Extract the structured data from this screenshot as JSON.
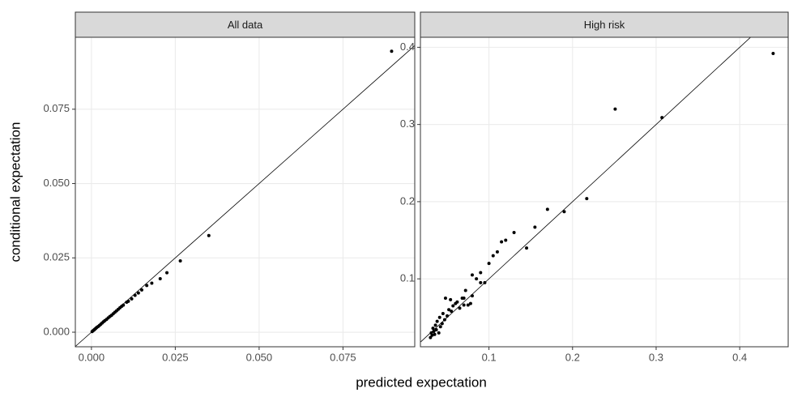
{
  "xlabel": "predicted expectation",
  "ylabel": "conditional expectation",
  "chart_data": [
    {
      "type": "scatter",
      "title": "All data",
      "color": "#000000",
      "grid": true,
      "reference_line": {
        "slope": 1,
        "intercept": 0
      },
      "xlim": [
        -0.0048,
        0.0964
      ],
      "ylim": [
        -0.0049,
        0.0992
      ],
      "xticks": [
        {
          "value": 0,
          "label": "0.000"
        },
        0.025,
        {
          "value": 0.05,
          "label": "0.050"
        },
        0.075
      ],
      "yticks": [
        {
          "value": 0,
          "label": "0.000"
        },
        0.025,
        {
          "value": 0.05,
          "label": "0.050"
        },
        0.075
      ],
      "x": [
        0.0002,
        0.0005,
        0.0008,
        0.001,
        0.0013,
        0.0016,
        0.002,
        0.0024,
        0.0028,
        0.0032,
        0.0036,
        0.004,
        0.0045,
        0.005,
        0.0055,
        0.006,
        0.0065,
        0.007,
        0.0075,
        0.008,
        0.0085,
        0.009,
        0.0095,
        0.0105,
        0.011,
        0.012,
        0.013,
        0.014,
        0.015,
        0.0165,
        0.018,
        0.0205,
        0.0225,
        0.0265,
        0.035,
        0.0895
      ],
      "y": [
        0.0002,
        0.0005,
        0.0008,
        0.001,
        0.0013,
        0.0016,
        0.0019,
        0.0023,
        0.0027,
        0.0031,
        0.0035,
        0.0039,
        0.0043,
        0.0048,
        0.0053,
        0.0057,
        0.0062,
        0.0067,
        0.0072,
        0.0077,
        0.0082,
        0.0087,
        0.0091,
        0.0101,
        0.0104,
        0.0112,
        0.0124,
        0.0132,
        0.0142,
        0.0157,
        0.0165,
        0.018,
        0.02,
        0.024,
        0.0325,
        0.0945
      ]
    },
    {
      "type": "scatter",
      "title": "High risk",
      "color": "#000000",
      "grid": true,
      "reference_line": {
        "slope": 1,
        "intercept": 0
      },
      "xlim": [
        0.018,
        0.458
      ],
      "ylim": [
        0.012,
        0.413
      ],
      "xticks": [
        0.1,
        0.2,
        0.3,
        0.4
      ],
      "yticks": [
        0.1,
        0.2,
        0.3,
        0.4
      ],
      "x": [
        0.03,
        0.031,
        0.032,
        0.033,
        0.034,
        0.035,
        0.036,
        0.037,
        0.038,
        0.04,
        0.041,
        0.042,
        0.044,
        0.045,
        0.047,
        0.048,
        0.05,
        0.052,
        0.054,
        0.055,
        0.057,
        0.06,
        0.062,
        0.065,
        0.068,
        0.07,
        0.072,
        0.075,
        0.078,
        0.08,
        0.085,
        0.09,
        0.07,
        0.08,
        0.09,
        0.095,
        0.1,
        0.105,
        0.11,
        0.115,
        0.12,
        0.13,
        0.145,
        0.155,
        0.17,
        0.19,
        0.217,
        0.251,
        0.307,
        0.44
      ],
      "y": [
        0.024,
        0.03,
        0.027,
        0.036,
        0.032,
        0.028,
        0.04,
        0.034,
        0.045,
        0.03,
        0.05,
        0.038,
        0.042,
        0.055,
        0.047,
        0.075,
        0.052,
        0.06,
        0.073,
        0.058,
        0.065,
        0.068,
        0.07,
        0.062,
        0.075,
        0.066,
        0.085,
        0.066,
        0.068,
        0.078,
        0.1,
        0.095,
        0.075,
        0.105,
        0.108,
        0.095,
        0.12,
        0.13,
        0.135,
        0.148,
        0.15,
        0.16,
        0.14,
        0.167,
        0.19,
        0.187,
        0.204,
        0.32,
        0.309,
        0.392
      ]
    }
  ]
}
